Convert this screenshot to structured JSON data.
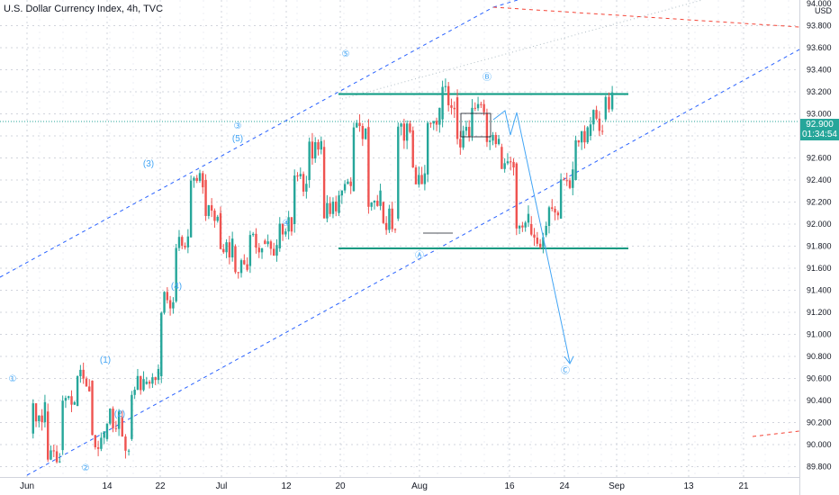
{
  "chart_data": {
    "type": "candlestick",
    "title": "U.S. Dollar Currency Index, 4h, TVC",
    "currency": "USD",
    "last_price": "92.900",
    "countdown": "01:34:54",
    "y_ticks": [
      "94.000",
      "93.800",
      "93.600",
      "93.400",
      "93.200",
      "93.000",
      "92.800",
      "92.600",
      "92.400",
      "92.200",
      "92.000",
      "91.800",
      "91.600",
      "91.400",
      "91.200",
      "91.000",
      "90.800",
      "90.600",
      "90.400",
      "90.200",
      "90.000",
      "89.800"
    ],
    "x_ticks": [
      "Jun",
      "14",
      "22",
      "Jul",
      "12",
      "20",
      "Aug",
      "16",
      "24",
      "Sep",
      "13",
      "21"
    ],
    "colors": {
      "up": "#26a69a",
      "down": "#ef5350",
      "channel": "#2962ff",
      "level": "#089981",
      "projection": "#42a5f5",
      "red_line": "#f44336"
    },
    "levels": [
      93.18,
      91.78
    ],
    "wave_labels": [
      "①",
      "②",
      "(1)",
      "(2)",
      "(3)",
      "(4)",
      "③",
      "(5)",
      "④",
      "⑤",
      "Ⓐ",
      "Ⓑ",
      "Ⓒ"
    ],
    "trend": [
      {
        "d": 1,
        "o": 90.1,
        "c": 90.3
      },
      {
        "d": 4,
        "o": 90.3,
        "c": 89.95
      },
      {
        "d": 7,
        "o": 89.95,
        "c": 90.35
      },
      {
        "d": 10,
        "o": 90.35,
        "c": 90.58
      },
      {
        "d": 13,
        "o": 90.58,
        "c": 90.05
      },
      {
        "d": 16,
        "o": 90.05,
        "c": 90.25
      },
      {
        "d": 19,
        "o": 90.25,
        "c": 90.05
      },
      {
        "d": 21,
        "o": 90.05,
        "c": 90.55
      },
      {
        "d": 24,
        "o": 90.55,
        "c": 90.62
      },
      {
        "d": 27,
        "o": 90.62,
        "c": 91.3
      },
      {
        "d": 30,
        "o": 91.3,
        "c": 91.88
      },
      {
        "d": 33,
        "o": 91.88,
        "c": 92.4
      },
      {
        "d": 36,
        "o": 92.4,
        "c": 92.1
      },
      {
        "d": 39,
        "o": 92.1,
        "c": 91.8
      },
      {
        "d": 42,
        "o": 91.8,
        "c": 91.62
      },
      {
        "d": 45,
        "o": 91.62,
        "c": 91.85
      },
      {
        "d": 48,
        "o": 91.85,
        "c": 91.78
      },
      {
        "d": 51,
        "o": 91.78,
        "c": 92.0
      },
      {
        "d": 54,
        "o": 92.0,
        "c": 92.4
      },
      {
        "d": 57,
        "o": 92.4,
        "c": 92.7
      },
      {
        "d": 60,
        "o": 92.7,
        "c": 92.1
      },
      {
        "d": 63,
        "o": 92.1,
        "c": 92.3
      },
      {
        "d": 66,
        "o": 92.3,
        "c": 92.88
      },
      {
        "d": 69,
        "o": 92.88,
        "c": 92.2
      },
      {
        "d": 72,
        "o": 92.2,
        "c": 92.05
      },
      {
        "d": 75,
        "o": 92.05,
        "c": 92.85
      },
      {
        "d": 78,
        "o": 92.85,
        "c": 92.45
      },
      {
        "d": 81,
        "o": 92.45,
        "c": 92.95
      },
      {
        "d": 84,
        "o": 92.95,
        "c": 93.15
      },
      {
        "d": 87,
        "o": 93.15,
        "c": 92.8
      },
      {
        "d": 90,
        "o": 92.8,
        "c": 93.0
      },
      {
        "d": 93,
        "o": 93.0,
        "c": 92.7
      },
      {
        "d": 96,
        "o": 92.7,
        "c": 92.55
      },
      {
        "d": 99,
        "o": 92.55,
        "c": 92.0
      },
      {
        "d": 102,
        "o": 92.0,
        "c": 91.9
      },
      {
        "d": 105,
        "o": 91.9,
        "c": 92.05
      },
      {
        "d": 108,
        "o": 92.05,
        "c": 92.4
      },
      {
        "d": 111,
        "o": 92.4,
        "c": 92.8
      },
      {
        "d": 114,
        "o": 92.8,
        "c": 92.95
      },
      {
        "d": 117,
        "o": 92.95,
        "c": 93.12
      },
      {
        "d": 119,
        "o": 93.12,
        "c": 92.9
      }
    ]
  }
}
